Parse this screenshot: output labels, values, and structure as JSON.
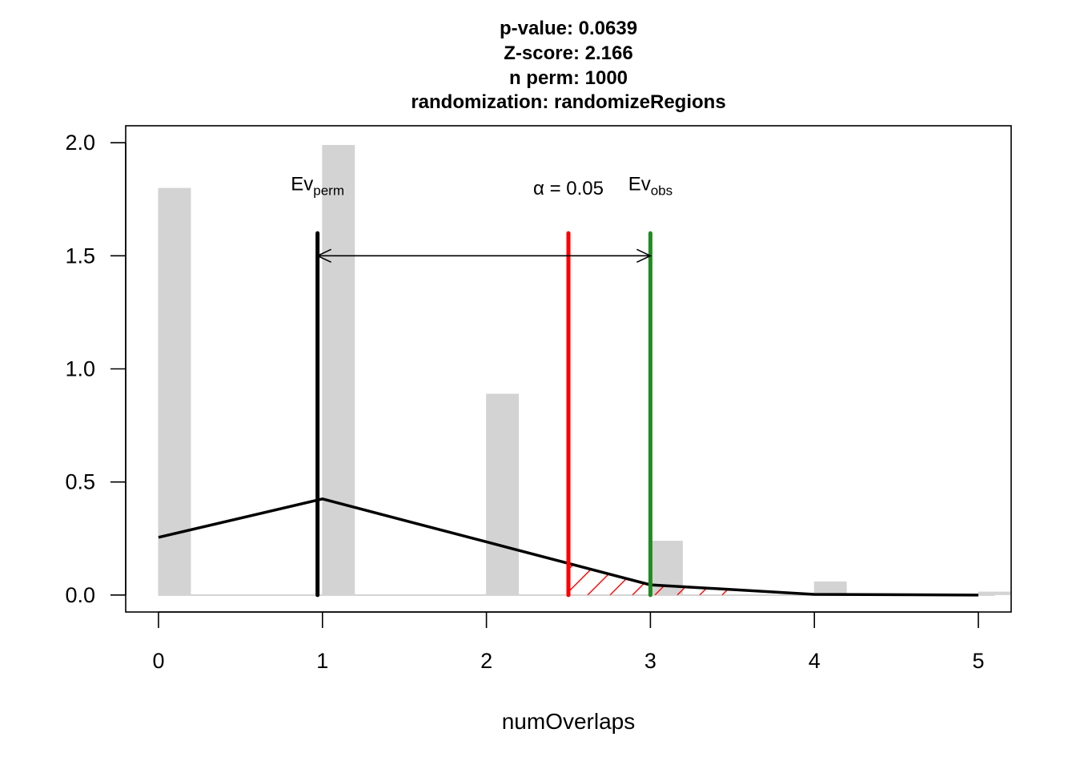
{
  "chart_data": {
    "type": "bar",
    "title_lines": [
      "p-value:  0.0639",
      "Z-score:  2.166",
      "n perm:  1000",
      "randomization:  randomizeRegions"
    ],
    "xlabel": "numOverlaps",
    "ylabel": "",
    "xlim": [
      -0.2,
      5.2
    ],
    "ylim": [
      -0.075,
      2.075
    ],
    "x_ticks": [
      0,
      1,
      2,
      3,
      4,
      5
    ],
    "x_tick_labels": [
      "0",
      "1",
      "2",
      "3",
      "4",
      "5"
    ],
    "y_ticks": [
      0.0,
      0.5,
      1.0,
      1.5,
      2.0
    ],
    "y_tick_labels": [
      "0.0",
      "0.5",
      "1.0",
      "1.5",
      "2.0"
    ],
    "histogram": {
      "x": [
        0,
        1,
        2,
        3,
        4,
        5
      ],
      "values": [
        1.8,
        1.99,
        0.89,
        0.24,
        0.06,
        0.015
      ],
      "color": "#d3d3d3"
    },
    "density_curve": {
      "x": [
        0,
        1,
        2,
        3,
        4,
        5
      ],
      "y": [
        0.255,
        0.425,
        0.235,
        0.045,
        0.003,
        0.0
      ],
      "color": "#000000"
    },
    "vlines": [
      {
        "x": 0.97,
        "y_top": 1.6,
        "color": "#000000"
      },
      {
        "x": 2.5,
        "y_top": 1.6,
        "color": "#ff0000"
      },
      {
        "x": 3.0,
        "y_top": 1.6,
        "color": "#228b22"
      }
    ],
    "arrow": {
      "x1": 0.97,
      "x2": 3.0,
      "y": 1.5
    },
    "shaded_tail": {
      "x_from": 2.5,
      "x_to": 3.5,
      "color": "#ff0000"
    },
    "annotations": {
      "ev_perm": {
        "main": "Ev",
        "sub": "perm",
        "x": 0.97,
        "y": 1.79
      },
      "alpha": {
        "text": "α = 0.05",
        "x": 2.5,
        "y": 1.77
      },
      "ev_obs": {
        "main": "Ev",
        "sub": "obs",
        "x": 3.0,
        "y": 1.79
      }
    }
  }
}
